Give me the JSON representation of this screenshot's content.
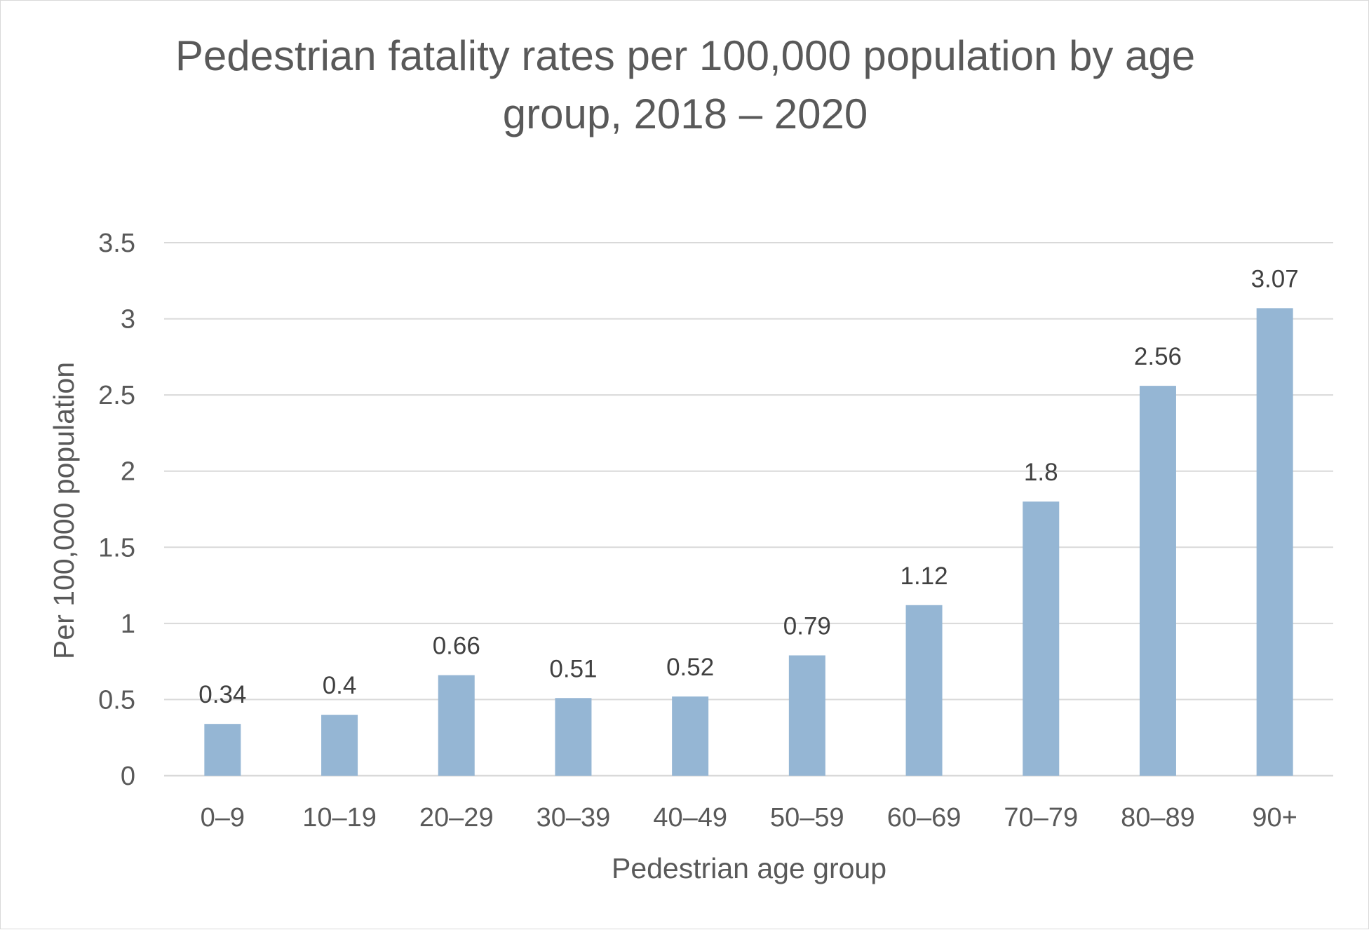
{
  "chart_data": {
    "type": "bar",
    "title_lines": [
      "Pedestrian fatality rates per 100,000 population by age",
      "group, 2018 – 2020"
    ],
    "xlabel": "Pedestrian age group",
    "ylabel": "Per 100,000 population",
    "categories": [
      "0–9",
      "10–19",
      "20–29",
      "30–39",
      "40–49",
      "50–59",
      "60–69",
      "70–79",
      "80–89",
      "90+"
    ],
    "values": [
      0.34,
      0.4,
      0.66,
      0.51,
      0.52,
      0.79,
      1.12,
      1.8,
      2.56,
      3.07
    ],
    "data_labels": [
      "0.34",
      "0.4",
      "0.66",
      "0.51",
      "0.52",
      "0.79",
      "1.12",
      "1.8",
      "2.56",
      "3.07"
    ],
    "yticks": [
      "0",
      "0.5",
      "1",
      "1.5",
      "2",
      "2.5",
      "3",
      "3.5"
    ],
    "ylim": [
      0,
      3.5
    ],
    "grid": true,
    "legend": "none",
    "bar_color": "#95b6d4"
  }
}
